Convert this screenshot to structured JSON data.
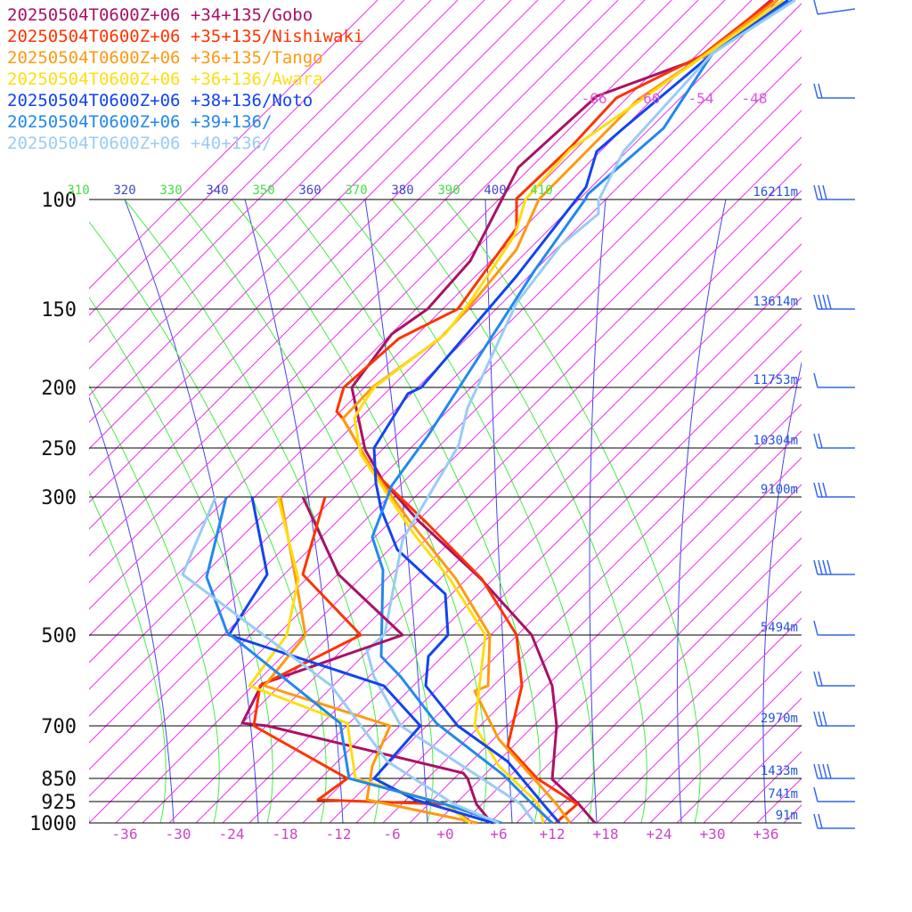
{
  "chart_data": {
    "type": "skew-t",
    "legend": [
      {
        "label": "20250504T0600Z+06 +34+135/Gobo",
        "color": "#aa1166"
      },
      {
        "label": "20250504T0600Z+06 +35+135/Nishiwaki",
        "color": "#ff3300"
      },
      {
        "label": "20250504T0600Z+06 +36+135/Tango",
        "color": "#ff9911"
      },
      {
        "label": "20250504T0600Z+06 +36+136/Awara",
        "color": "#ffdd11"
      },
      {
        "label": "20250504T0600Z+06 +38+136/Noto",
        "color": "#1144ee"
      },
      {
        "label": "20250504T0600Z+06 +39+136/",
        "color": "#2288ee"
      },
      {
        "label": "20250504T0600Z+06 +40+136/",
        "color": "#99ccf5"
      }
    ],
    "pressure_levels": [
      100,
      150,
      200,
      250,
      300,
      500,
      700,
      850,
      925,
      1000
    ],
    "heights": [
      "16211m",
      "13614m",
      "11753m",
      "10304m",
      "9100m",
      "5494m",
      "2970m",
      "1433m",
      "741m",
      "91m"
    ],
    "height_levels": [
      100,
      150,
      200,
      250,
      300,
      500,
      700,
      850,
      925,
      1000
    ],
    "x_ticks": [
      "-36",
      "-30",
      "-24",
      "-18",
      "-12",
      "-6",
      "+0",
      "+6",
      "+12",
      "+18",
      "+24",
      "+30",
      "+36"
    ],
    "upper_temp_labels": [
      "-66",
      "-60",
      "-54",
      "-48"
    ],
    "theta_labels": [
      "310",
      "320",
      "330",
      "340",
      "350",
      "360",
      "370",
      "380",
      "390",
      "400",
      "410"
    ],
    "temperature_series": [
      {
        "color": "#aa1166",
        "points": [
          [
            70,
            22
          ],
          [
            86,
            29
          ],
          [
            96,
            35
          ],
          [
            101,
            43
          ],
          [
            104,
            66
          ],
          [
            112,
            86
          ],
          [
            126,
            126
          ],
          [
            134,
            184
          ],
          [
            139,
            223
          ],
          [
            140,
            264
          ],
          [
            139,
            286
          ],
          [
            138,
            308
          ],
          [
            129,
            355
          ],
          [
            115,
            390
          ],
          [
            98,
            426
          ],
          [
            91,
            447
          ],
          [
            80,
            471
          ],
          [
            72,
            515
          ],
          [
            62,
            551
          ],
          [
            44,
            579
          ],
          [
            32,
            593
          ],
          [
            24,
            604
          ],
          [
            11,
            620
          ]
        ]
      },
      {
        "color": "#ff3300",
        "points": [
          [
            63,
            10
          ],
          [
            80,
            29
          ],
          [
            81,
            46
          ],
          [
            82,
            64
          ],
          [
            83,
            81
          ],
          [
            89,
            104
          ],
          [
            95,
            133
          ],
          [
            103,
            145
          ],
          [
            115,
            162
          ],
          [
            124,
            180
          ],
          [
            132,
            212
          ],
          [
            133,
            228
          ],
          [
            133,
            241
          ],
          [
            131,
            253
          ],
          [
            123,
            279
          ],
          [
            104,
            313
          ],
          [
            91,
            342
          ],
          [
            81,
            383
          ],
          [
            72,
            412
          ],
          [
            61,
            448
          ],
          [
            56,
            513
          ],
          [
            48,
            550
          ],
          [
            30,
            576
          ],
          [
            25,
            584
          ],
          [
            11,
            600
          ]
        ]
      },
      {
        "color": "#ff9911",
        "points": [
          [
            56,
            12
          ],
          [
            72,
            31
          ],
          [
            68,
            46
          ],
          [
            64,
            76
          ],
          [
            65,
            96
          ],
          [
            71,
            112
          ],
          [
            74,
            126
          ],
          [
            80,
            149
          ],
          [
            84,
            161
          ],
          [
            92,
            204
          ],
          [
            103,
            228
          ],
          [
            118,
            255
          ],
          [
            128,
            283
          ],
          [
            132,
            300
          ],
          [
            134,
            312
          ],
          [
            133,
            333
          ],
          [
            135,
            340
          ],
          [
            135,
            370
          ],
          [
            131,
            384
          ],
          [
            124,
            406
          ],
          [
            114,
            430
          ],
          [
            98,
            461
          ],
          [
            82,
            493
          ],
          [
            73,
            513
          ],
          [
            60,
            540
          ],
          [
            44,
            568
          ],
          [
            37,
            574
          ],
          [
            19,
            592
          ]
        ]
      },
      {
        "color": "#ffdd11",
        "points": [
          [
            52,
            8
          ],
          [
            66,
            24
          ],
          [
            57,
            40
          ],
          [
            53,
            55
          ],
          [
            52,
            70
          ],
          [
            55,
            84
          ],
          [
            62,
            109
          ],
          [
            71,
            124
          ],
          [
            84,
            156
          ],
          [
            92,
            184
          ],
          [
            104,
            219
          ],
          [
            117,
            256
          ],
          [
            128,
            282
          ],
          [
            132,
            300
          ],
          [
            132,
            312
          ],
          [
            131,
            333
          ],
          [
            134,
            345
          ],
          [
            135,
            376
          ],
          [
            132,
            400
          ],
          [
            123,
            424
          ],
          [
            110,
            452
          ],
          [
            92,
            485
          ],
          [
            78,
            509
          ],
          [
            57,
            538
          ],
          [
            42,
            563
          ],
          [
            21,
            590
          ]
        ]
      },
      {
        "color": "#1144ee",
        "points": [
          [
            29,
            8
          ],
          [
            39,
            17
          ],
          [
            47,
            27
          ],
          [
            57,
            43
          ],
          [
            66,
            60
          ],
          [
            71,
            70
          ],
          [
            84,
            97
          ],
          [
            94,
            124
          ],
          [
            106,
            148
          ],
          [
            113,
            162
          ],
          [
            127,
            204
          ],
          [
            133,
            228
          ],
          [
            148,
            259
          ],
          [
            160,
            280
          ],
          [
            164,
            299
          ],
          [
            168,
            320
          ],
          [
            172,
            333
          ],
          [
            173,
            341
          ],
          [
            172,
            354
          ],
          [
            165,
            365
          ],
          [
            164,
            379
          ],
          [
            168,
            391
          ],
          [
            169,
            409
          ],
          [
            164,
            427
          ],
          [
            159,
            441
          ],
          [
            148,
            464
          ],
          [
            140,
            480
          ],
          [
            128,
            497
          ],
          [
            113,
            519
          ],
          [
            92,
            547
          ],
          [
            78,
            567
          ],
          [
            54,
            591
          ],
          [
            41,
            600
          ],
          [
            36,
            607
          ]
        ]
      },
      {
        "color": "#2288ee",
        "points": [
          [
            24,
            8
          ],
          [
            32,
            17
          ],
          [
            40,
            27
          ],
          [
            53,
            40
          ],
          [
            60,
            52
          ],
          [
            68,
            71
          ],
          [
            72,
            84
          ],
          [
            77,
            95
          ],
          [
            79,
            107
          ],
          [
            82,
            123
          ],
          [
            92,
            150
          ],
          [
            102,
            175
          ],
          [
            117,
            207
          ],
          [
            132,
            232
          ],
          [
            136,
            259
          ],
          [
            140,
            288
          ],
          [
            146,
            318
          ],
          [
            151,
            343
          ],
          [
            156,
            375
          ],
          [
            162,
            409
          ],
          [
            167,
            442
          ],
          [
            178,
            466
          ],
          [
            186,
            483
          ],
          [
            191,
            508
          ],
          [
            187,
            520
          ],
          [
            176,
            538
          ],
          [
            162,
            549
          ],
          [
            148,
            563
          ],
          [
            128,
            579
          ],
          [
            104,
            595
          ],
          [
            78,
            607
          ],
          [
            37,
            622
          ]
        ]
      },
      {
        "color": "#99ccf5",
        "points": [
          [
            20,
            8
          ],
          [
            31,
            18
          ],
          [
            39,
            28
          ],
          [
            52,
            40
          ],
          [
            60,
            52
          ],
          [
            70,
            70
          ],
          [
            71,
            80
          ],
          [
            79,
            95
          ],
          [
            87,
            108
          ],
          [
            102,
            134
          ],
          [
            110,
            149
          ],
          [
            130,
            180
          ],
          [
            143,
            200
          ],
          [
            149,
            215
          ],
          [
            157,
            233
          ],
          [
            165,
            254
          ],
          [
            173,
            279
          ],
          [
            182,
            306
          ],
          [
            189,
            321
          ],
          [
            189,
            335
          ],
          [
            191,
            352
          ],
          [
            190,
            370
          ],
          [
            193,
            388
          ],
          [
            197,
            406
          ],
          [
            201,
            420
          ],
          [
            208,
            438
          ],
          [
            221,
            459
          ],
          [
            239,
            480
          ],
          [
            248,
            494
          ],
          [
            267,
            518
          ],
          [
            284,
            536
          ],
          [
            293,
            549
          ],
          [
            315,
            572
          ]
        ]
      }
    ]
  }
}
